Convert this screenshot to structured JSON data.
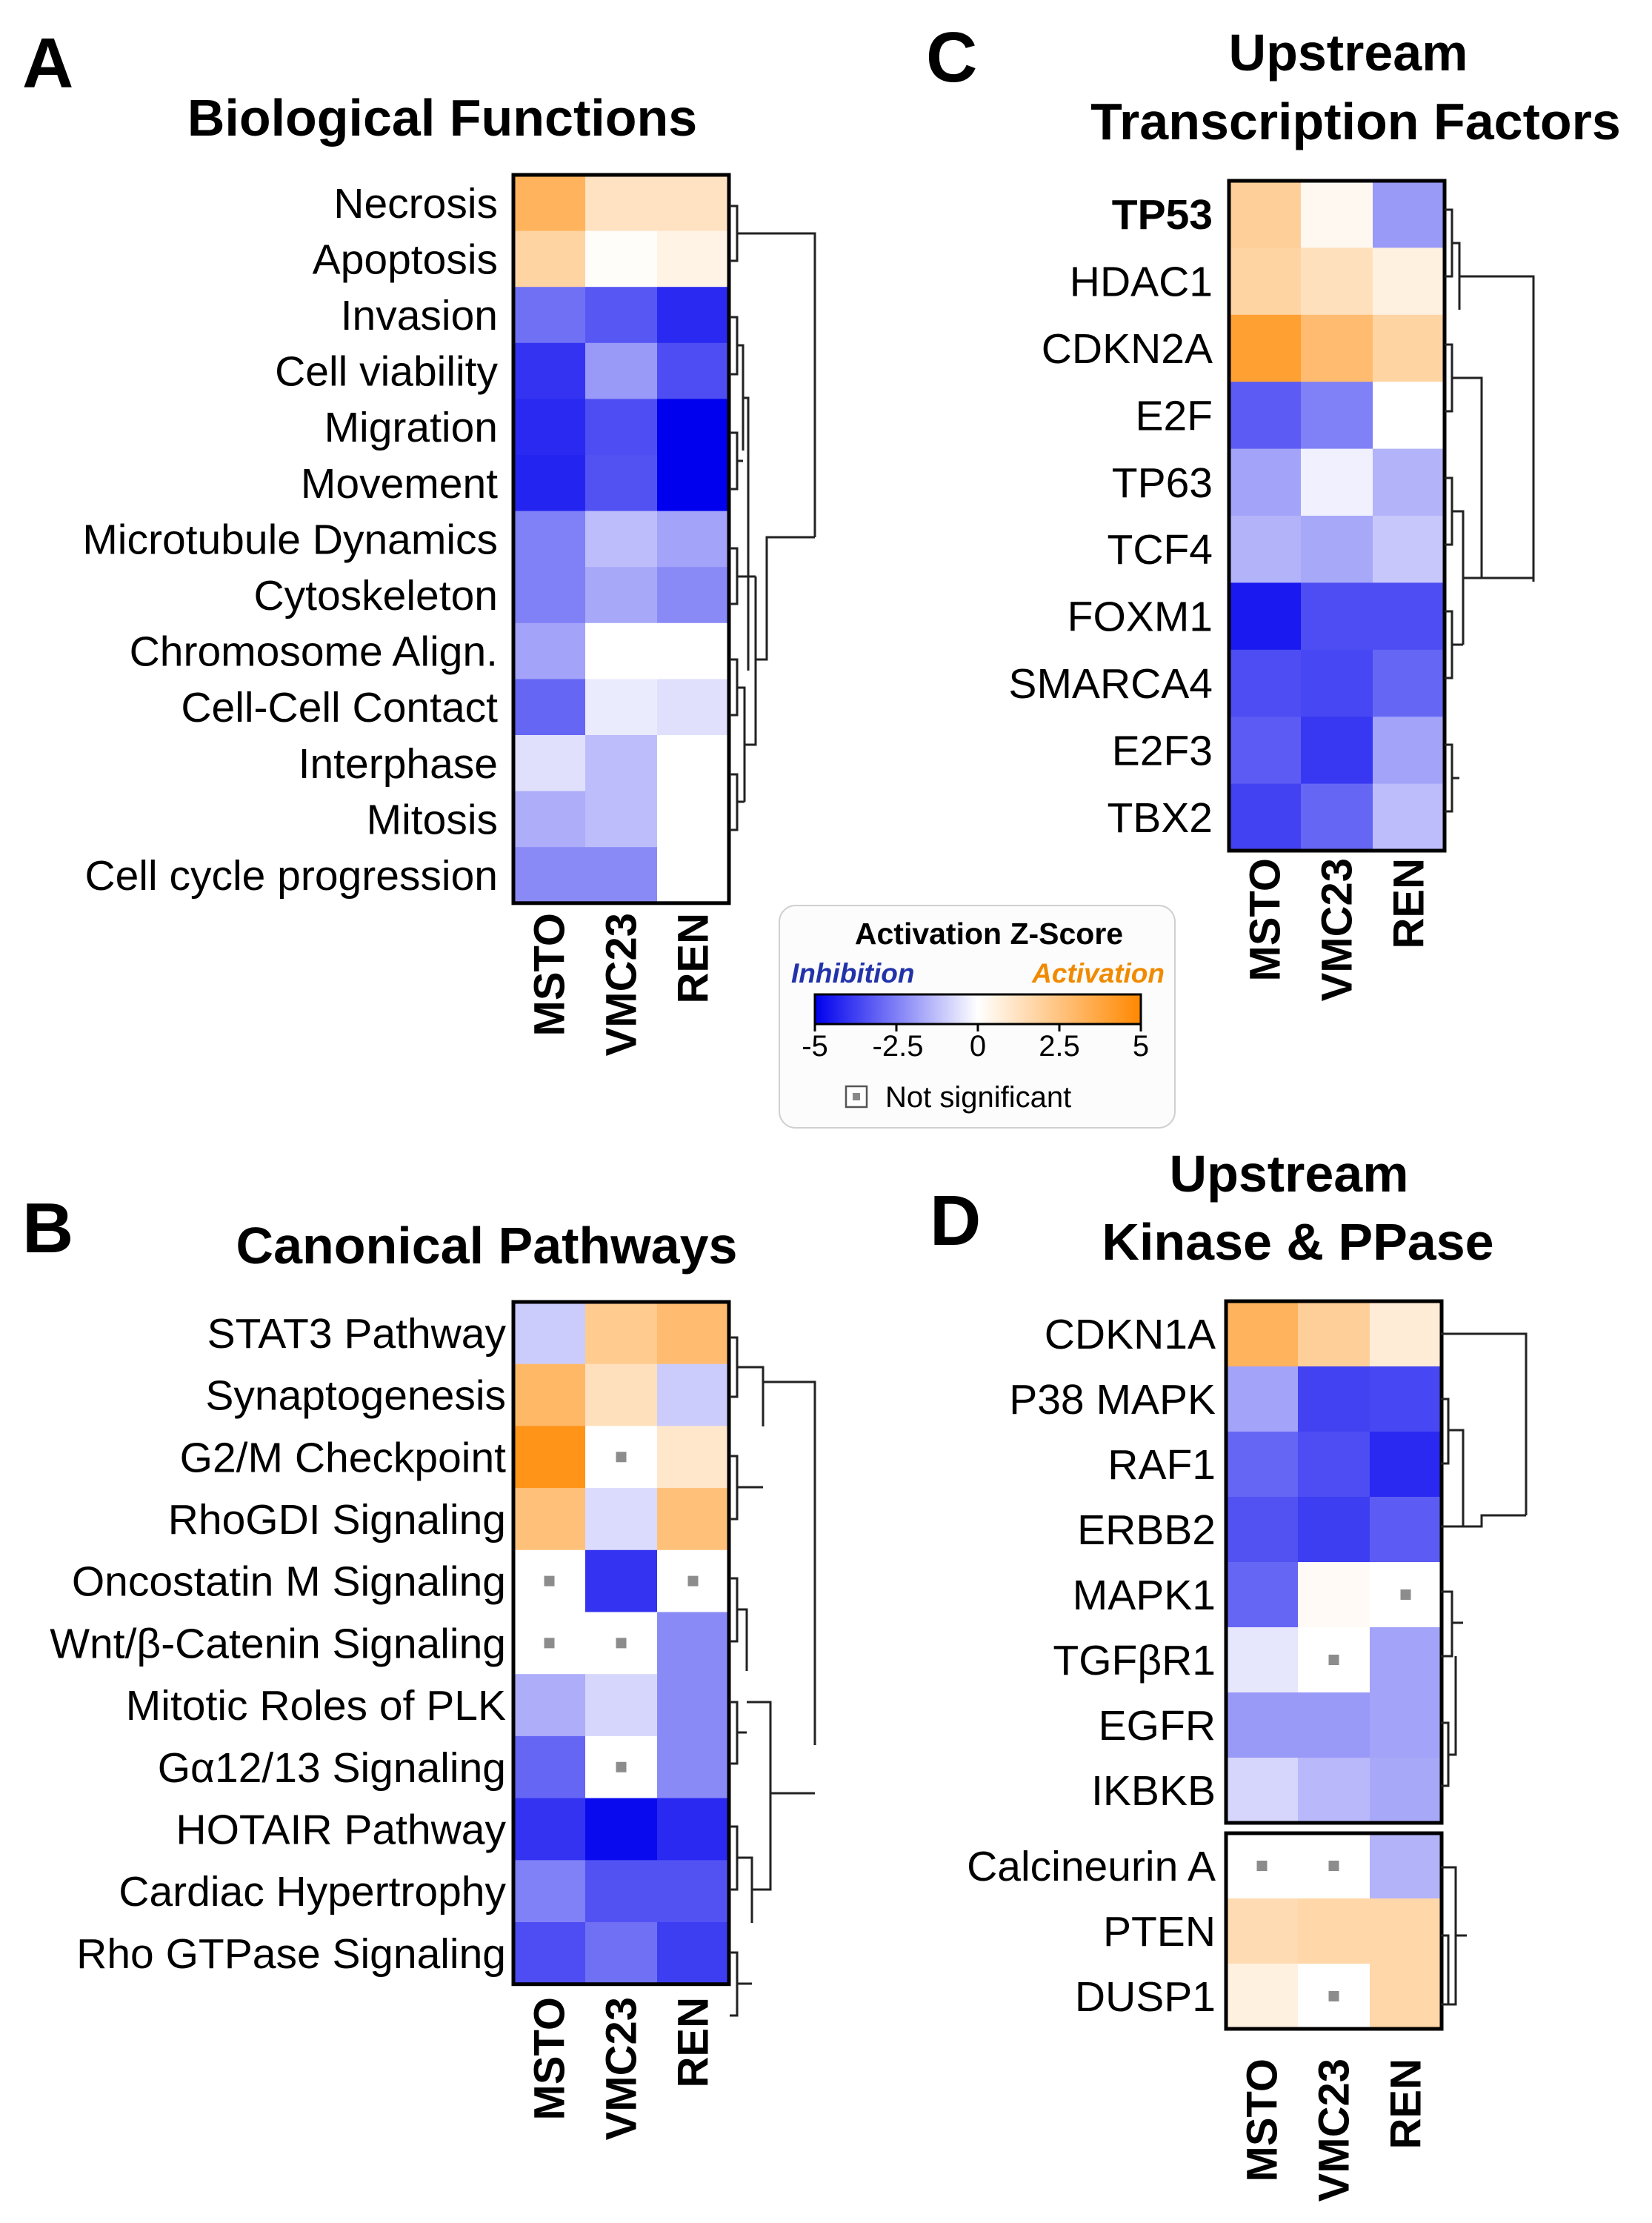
{
  "legend": {
    "title": "Activation Z-Score",
    "inhibition_label": "Inhibition",
    "activation_label": "Activation",
    "ticks": [
      "-5",
      "-2.5",
      "0",
      "2.5",
      "5"
    ],
    "ns_label": "Not significant"
  },
  "chart_data": [
    {
      "type": "heatmap",
      "panel": "A",
      "title": "Biological Functions",
      "columns": [
        "MSTO",
        "VMC23",
        "REN"
      ],
      "rows": [
        "Necrosis",
        "Apoptosis",
        "Invasion",
        "Cell viability",
        "Migration",
        "Movement",
        "Microtubule Dynamics",
        "Cytoskeleton",
        "Chromosome Align.",
        "Cell-Cell Contact",
        "Interphase",
        "Mitosis",
        "Cell cycle progression"
      ],
      "values": [
        [
          3.2,
          1.2,
          1.2
        ],
        [
          1.8,
          0.1,
          0.5
        ],
        [
          -2.8,
          -3.3,
          -4.2
        ],
        [
          -4.0,
          -2.0,
          -3.5
        ],
        [
          -4.2,
          -3.5,
          -5.0
        ],
        [
          -4.3,
          -3.4,
          -5.0
        ],
        [
          -2.5,
          -1.3,
          -1.8
        ],
        [
          -2.5,
          -1.7,
          -2.3
        ],
        [
          -1.8,
          0,
          0
        ],
        [
          -3.0,
          -0.4,
          -0.6
        ],
        [
          -0.6,
          -1.3,
          0
        ],
        [
          -1.6,
          -1.3,
          0
        ],
        [
          -2.3,
          -2.3,
          0
        ]
      ],
      "zlim": [
        -5,
        5
      ]
    },
    {
      "type": "heatmap",
      "panel": "B",
      "title": "Canonical Pathways",
      "columns": [
        "MSTO",
        "VMC23",
        "REN"
      ],
      "rows": [
        "STAT3 Pathway",
        "Synaptogenesis",
        "G2/M Checkpoint",
        "RhoGDI Signaling",
        "Oncostatin M Signaling",
        "Wnt/β-Catenin Signaling",
        "Mitotic Roles of PLK",
        "Gα12/13 Signaling",
        "HOTAIR Pathway",
        "Cardiac Hypertrophy",
        "Rho GTPase Signaling"
      ],
      "values": [
        [
          -1.0,
          2.2,
          2.8
        ],
        [
          3.0,
          1.3,
          -1.0
        ],
        [
          4.5,
          null,
          1.0
        ],
        [
          2.6,
          -0.7,
          2.6
        ],
        [
          null,
          -4.0,
          null
        ],
        [
          null,
          null,
          -2.3
        ],
        [
          -1.6,
          -0.8,
          -2.3
        ],
        [
          -3.0,
          null,
          -2.3
        ],
        [
          -4.0,
          -4.8,
          -4.2
        ],
        [
          -2.5,
          -3.4,
          -3.4
        ],
        [
          -3.5,
          -2.8,
          -3.8
        ]
      ],
      "not_significant": [
        [
          2,
          1
        ],
        [
          4,
          0
        ],
        [
          4,
          2
        ],
        [
          5,
          0
        ],
        [
          5,
          1
        ],
        [
          7,
          1
        ]
      ],
      "zlim": [
        -5,
        5
      ]
    },
    {
      "type": "heatmap",
      "panel": "C",
      "title": "Upstream Transcription Factors",
      "title_lines": [
        "Upstream",
        "Transcription Factors"
      ],
      "columns": [
        "MSTO",
        "VMC23",
        "REN"
      ],
      "rows": [
        "TP53",
        "HDAC1",
        "CDKN2A",
        "E2F",
        "TP63",
        "TCF4",
        "FOXM1",
        "SMARCA4",
        "E2F3",
        "TBX2"
      ],
      "values": [
        [
          2.0,
          0.3,
          -2.0
        ],
        [
          1.8,
          1.3,
          0.6
        ],
        [
          4.0,
          2.8,
          1.8
        ],
        [
          -3.2,
          -2.5,
          0
        ],
        [
          -1.8,
          -0.3,
          -1.5
        ],
        [
          -1.5,
          -1.7,
          -1.1
        ],
        [
          -4.5,
          -3.5,
          -3.5
        ],
        [
          -3.5,
          -3.6,
          -3.0
        ],
        [
          -3.2,
          -3.9,
          -1.8
        ],
        [
          -3.7,
          -3.0,
          -1.3
        ]
      ],
      "zlim": [
        -5,
        5
      ]
    },
    {
      "type": "heatmap",
      "panel": "D",
      "title": "Upstream Kinase & PPase",
      "title_lines": [
        "Upstream",
        "Kinase & PPase"
      ],
      "columns": [
        "MSTO",
        "VMC23",
        "REN"
      ],
      "rows": [
        "CDKN1A",
        "P38 MAPK",
        "RAF1",
        "ERBB2",
        "MAPK1",
        "TGFβR1",
        "EGFR",
        "IKBKB",
        "Calcineurin A",
        "PTEN",
        "DUSP1"
      ],
      "values": [
        [
          3.2,
          2.0,
          0.8
        ],
        [
          -1.8,
          -3.7,
          -3.6
        ],
        [
          -3.0,
          -3.5,
          -4.2
        ],
        [
          -3.4,
          -3.8,
          -3.2
        ],
        [
          -3.0,
          0.2,
          null
        ],
        [
          -0.5,
          null,
          -1.8
        ],
        [
          -2.0,
          -2.0,
          -1.8
        ],
        [
          -0.8,
          -1.4,
          -1.7
        ],
        [
          null,
          null,
          -1.5
        ],
        [
          1.5,
          1.7,
          1.7
        ],
        [
          0.6,
          null,
          1.7
        ]
      ],
      "not_significant": [
        [
          4,
          2
        ],
        [
          5,
          1
        ],
        [
          8,
          0
        ],
        [
          8,
          1
        ],
        [
          10,
          1
        ]
      ],
      "zlim": [
        -5,
        5
      ]
    }
  ]
}
